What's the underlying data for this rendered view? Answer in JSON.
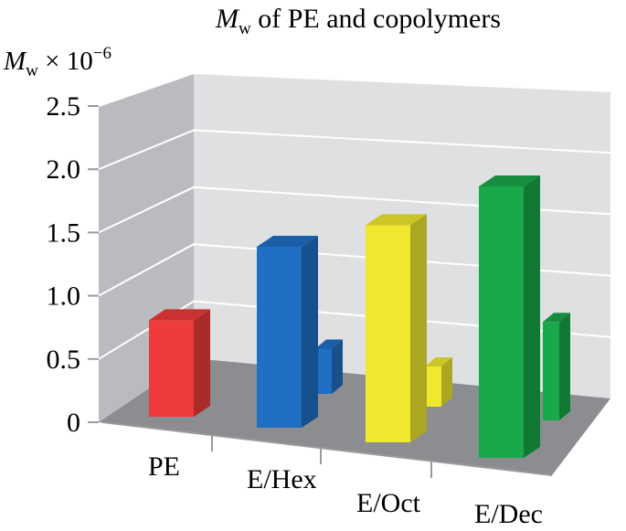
{
  "chart_data": {
    "type": "bar",
    "title": {
      "symbol": "M",
      "subscript": "w",
      "rest": " of PE and copolymers"
    },
    "ylabel": {
      "symbol": "M",
      "subscript": "w",
      "rest": " × 10",
      "exponent": "−6"
    },
    "xlabel": "",
    "categories": [
      "PE",
      "E/Hex",
      "E/Oct",
      "E/Dec"
    ],
    "y_ticks": [
      "0",
      "0.5",
      "1.0",
      "1.5",
      "2.0",
      "2.5"
    ],
    "ylim": [
      0,
      2.5
    ],
    "grid": true,
    "view": "3d-perspective",
    "series": [
      {
        "values": [
          0.8,
          1.5,
          1.8,
          2.25
        ],
        "colors": [
          "#ee3b3b",
          "#1f6fc4",
          "#efe82e",
          "#19a84a"
        ]
      },
      {
        "values": [
          null,
          0.45,
          0.4,
          0.98
        ],
        "colors": [
          null,
          "#1f6fc4",
          "#efe82e",
          "#19a84a"
        ]
      }
    ]
  }
}
